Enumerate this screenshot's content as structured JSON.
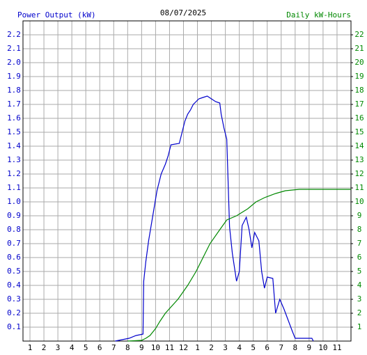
{
  "chart_data": {
    "type": "line",
    "title": "08/07/2025",
    "xlim": [
      0.5,
      24
    ],
    "xticks": [
      1,
      2,
      3,
      4,
      5,
      6,
      7,
      8,
      9,
      10,
      11,
      12,
      {
        "value": 13,
        "label": "1"
      },
      {
        "value": 14,
        "label": "2"
      },
      {
        "value": 15,
        "label": "3"
      },
      {
        "value": 16,
        "label": "4"
      },
      {
        "value": 17,
        "label": "5"
      },
      {
        "value": 18,
        "label": "6"
      },
      {
        "value": 19,
        "label": "7"
      },
      {
        "value": 20,
        "label": "8"
      },
      {
        "value": 21,
        "label": "9"
      },
      {
        "value": 22,
        "label": "10"
      },
      {
        "value": 23,
        "label": "11"
      }
    ],
    "ylim": [
      0,
      2.3
    ],
    "yticks": [
      0.1,
      0.2,
      0.3,
      0.4,
      0.5,
      0.6,
      0.7,
      0.8,
      0.9,
      {
        "value": 1,
        "label": "1.0"
      },
      1.1,
      1.2,
      1.3,
      1.4,
      1.5,
      1.6,
      1.7,
      1.8,
      1.9,
      {
        "value": 2,
        "label": "2.0"
      },
      2.1,
      2.2
    ],
    "y2lim": [
      0,
      23
    ],
    "y2ticks": [
      1,
      2,
      3,
      4,
      5,
      6,
      7,
      8,
      9,
      10,
      11,
      12,
      13,
      14,
      15,
      16,
      17,
      18,
      19,
      20,
      21,
      22
    ],
    "grid": true,
    "series": [
      {
        "name": "Power Output (kW)",
        "color": "#0000cc",
        "x": [
          7.1,
          7.6,
          8.1,
          8.6,
          9.1,
          9.15,
          9.3,
          9.5,
          9.8,
          10.1,
          10.4,
          10.7,
          10.9,
          11.1,
          11.7,
          11.9,
          12.1,
          12.3,
          12.5,
          12.7,
          12.9,
          13.1,
          13.4,
          13.7,
          14.0,
          14.3,
          14.6,
          14.7,
          14.9,
          15.1,
          15.3,
          15.5,
          15.8,
          16.0,
          16.2,
          16.5,
          16.7,
          16.9,
          17.1,
          17.4,
          17.6,
          17.8,
          18.0,
          18.4,
          18.6,
          18.9,
          19.2,
          19.5,
          19.8,
          20.0,
          21.2,
          21.3
        ],
        "values": [
          0,
          0.01,
          0.02,
          0.04,
          0.05,
          0.43,
          0.57,
          0.72,
          0.9,
          1.08,
          1.2,
          1.27,
          1.33,
          1.41,
          1.42,
          1.5,
          1.58,
          1.63,
          1.66,
          1.7,
          1.72,
          1.74,
          1.75,
          1.76,
          1.74,
          1.72,
          1.71,
          1.63,
          1.53,
          1.45,
          0.82,
          0.63,
          0.43,
          0.5,
          0.83,
          0.89,
          0.8,
          0.67,
          0.78,
          0.72,
          0.5,
          0.38,
          0.46,
          0.45,
          0.2,
          0.3,
          0.23,
          0.15,
          0.07,
          0.02,
          0.02,
          0
        ]
      },
      {
        "name": "Daily kW-Hours",
        "color": "#008800",
        "axis": "y2",
        "x": [
          8.0,
          9.0,
          9.3,
          9.6,
          10.0,
          10.3,
          10.7,
          11.6,
          12.3,
          12.9,
          13.4,
          13.9,
          14.6,
          15.1,
          15.8,
          16.6,
          17.2,
          17.8,
          18.6,
          19.3,
          20.3,
          24
        ],
        "values": [
          0,
          0.05,
          0.2,
          0.4,
          0.9,
          1.4,
          2,
          3,
          4,
          5,
          6,
          7,
          8,
          8.7,
          9,
          9.5,
          10,
          10.3,
          10.6,
          10.8,
          10.9,
          10.9
        ]
      }
    ]
  }
}
